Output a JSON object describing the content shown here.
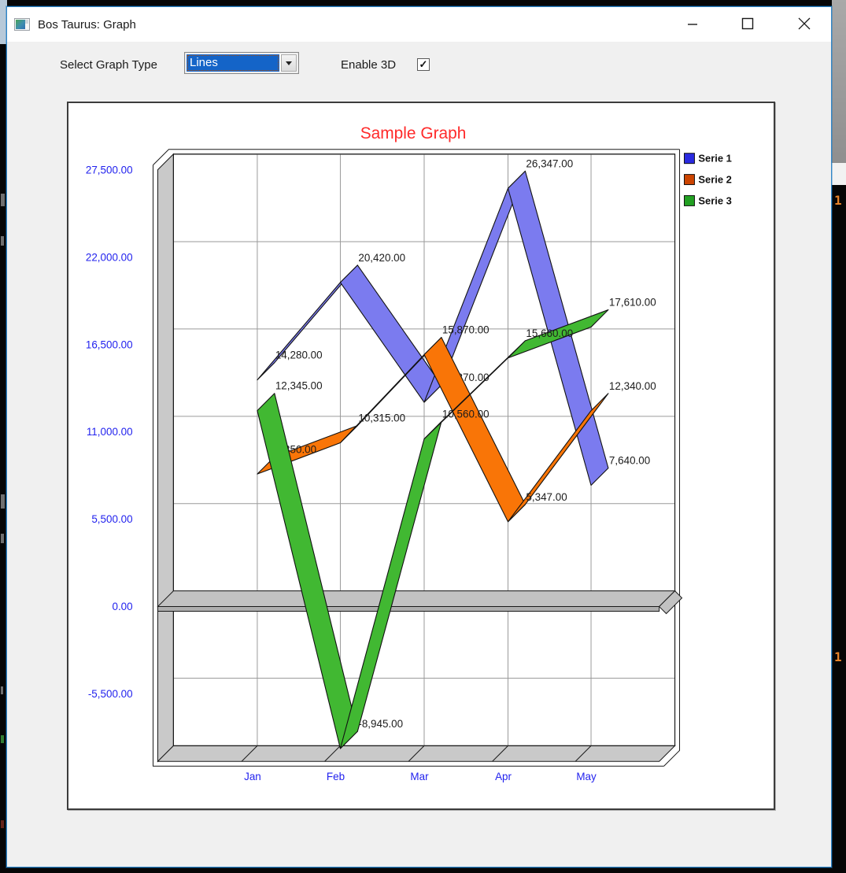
{
  "window": {
    "title": "Bos Taurus: Graph",
    "controls": {
      "minimize": "minimize",
      "maximize": "maximize",
      "close": "close"
    }
  },
  "toolbar": {
    "graph_type_label": "Select Graph Type",
    "graph_type_value": "Lines",
    "select_highlight_color": "#1464c8",
    "enable_3d_label": "Enable 3D",
    "enable_3d_checked": true,
    "checkmark": "✓"
  },
  "chart_data": {
    "type": "line",
    "is_3d": true,
    "title": "Sample Graph",
    "title_color": "#ff2a2a",
    "axis_text_color": "#2222ee",
    "label_text_color": "#1c1c1c",
    "grid": true,
    "grid_color": "#9a9a9a",
    "wall_color": "#c9c9c9",
    "zero_plane_color": "#c2c2c2",
    "legend_position": "top-right",
    "categories": [
      "Jan",
      "Feb",
      "Mar",
      "Apr",
      "May"
    ],
    "y_ticks": [
      "27,500.00",
      "22,000.00",
      "16,500.00",
      "11,000.00",
      "5,500.00",
      "0.00",
      "-5,500.00"
    ],
    "y_tick_values": [
      27500,
      22000,
      16500,
      11000,
      5500,
      0,
      -5500
    ],
    "ylim": [
      -9900,
      27500
    ],
    "series": [
      {
        "name": "Serie 1",
        "color": "#7b7bef",
        "legend_color": "#2a2ae0",
        "values": [
          14280,
          20420,
          12870,
          26347,
          7640
        ],
        "labels": [
          "14,280.00",
          "20,420.00",
          "12,870.00",
          "26,347.00",
          "7,640.00"
        ]
      },
      {
        "name": "Serie 2",
        "color": "#f97507",
        "legend_color": "#cc4400",
        "values": [
          8350,
          10315,
          15870,
          5347,
          12340
        ],
        "labels": [
          "8,350.00",
          "10,315.00",
          "15,870.00",
          "5,347.00",
          "12,340.00"
        ]
      },
      {
        "name": "Serie 3",
        "color": "#41b832",
        "legend_color": "#22a022",
        "values": [
          12345,
          -8945,
          10560,
          15660,
          17610
        ],
        "labels": [
          "12,345.00",
          "-8,945.00",
          "10,560.00",
          "15,660.00",
          "17,610.00"
        ]
      }
    ]
  },
  "background": {
    "right_marker_1": "1",
    "right_marker_2": "1"
  }
}
